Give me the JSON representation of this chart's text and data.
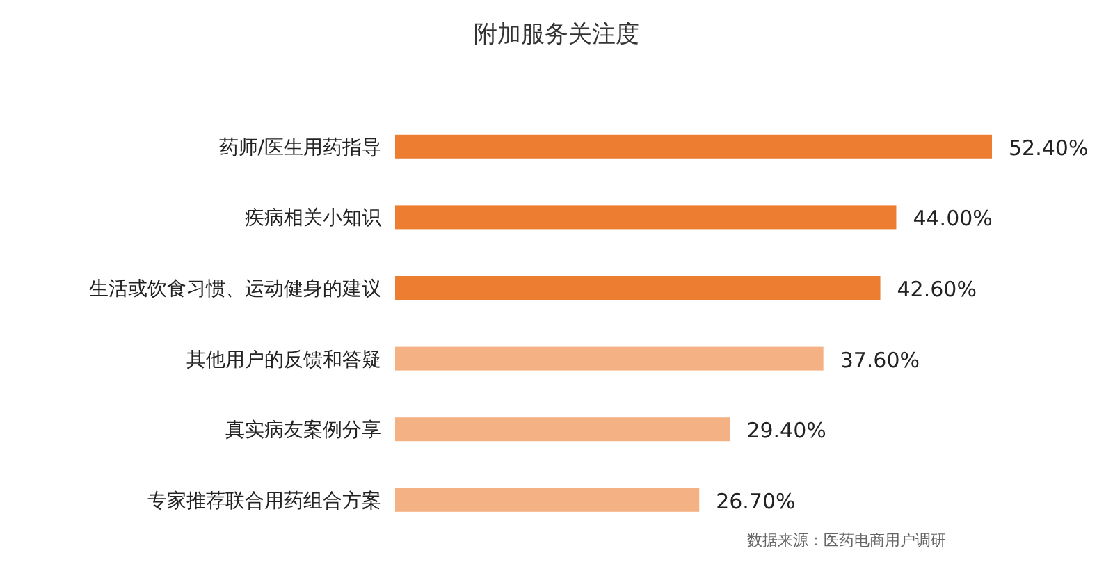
{
  "chart_data": {
    "type": "bar",
    "orientation": "horizontal",
    "title": "附加服务关注度",
    "categories": [
      "药师/医生用药指导",
      "疾病相关小知识",
      "生活或饮食习惯、运动健身的建议",
      "其他用户的反馈和答疑",
      "真实病友案例分享",
      "专家推荐联合用药组合方案"
    ],
    "values": [
      52.4,
      44.0,
      42.6,
      37.6,
      29.4,
      26.7
    ],
    "value_labels": [
      "52.40%",
      "44.00%",
      "42.60%",
      "37.60%",
      "29.40%",
      "26.70%"
    ],
    "colors": [
      "#ed7d31",
      "#ed7d31",
      "#ed7d31",
      "#f4b183",
      "#f4b183",
      "#f4b183"
    ],
    "annotations": [
      "数据来源：医药电商用户调研"
    ]
  }
}
